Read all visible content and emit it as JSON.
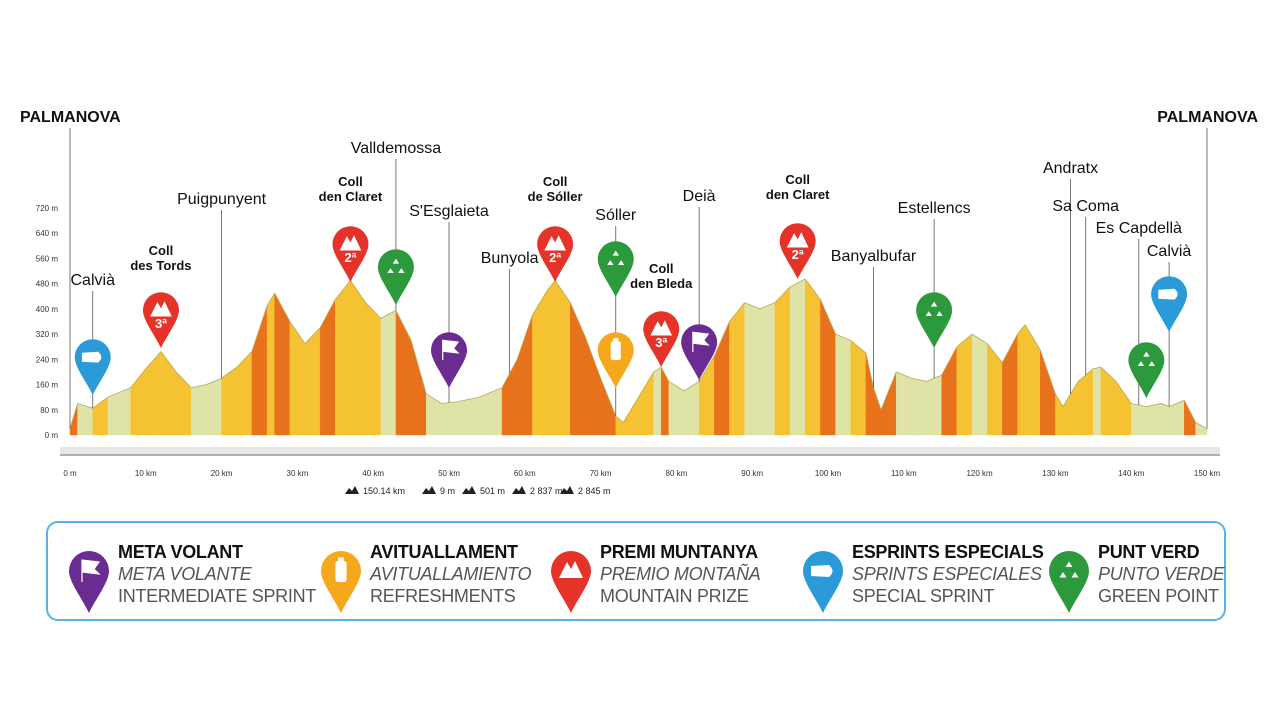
{
  "chart_data": {
    "type": "area",
    "title": "",
    "xlabel": "",
    "ylabel": "",
    "xlim": [
      0,
      150
    ],
    "ylim": [
      0,
      720
    ],
    "x_ticks": [
      0,
      10,
      20,
      30,
      40,
      50,
      60,
      70,
      80,
      90,
      100,
      110,
      120,
      130,
      140,
      150
    ],
    "x_tick_labels": [
      "0 m",
      "10 km",
      "20 km",
      "30 km",
      "40 km",
      "50 km",
      "60 km",
      "70 km",
      "80 km",
      "90 km",
      "100 km",
      "110 km",
      "120 km",
      "130 km",
      "140 km",
      "150 km"
    ],
    "y_ticks": [
      0,
      80,
      160,
      240,
      320,
      400,
      480,
      560,
      640,
      720
    ],
    "y_tick_labels": [
      "0 m",
      "80 m",
      "160 m",
      "240 m",
      "320 m",
      "400 m",
      "480 m",
      "560 m",
      "640 m",
      "720 m"
    ],
    "profile": {
      "x": [
        0,
        1,
        3,
        5,
        8,
        10,
        12,
        14,
        16,
        18,
        20,
        22,
        24,
        26,
        27,
        29,
        31,
        33,
        35,
        37,
        39,
        41,
        43,
        45,
        47,
        49,
        51,
        54,
        57,
        59,
        61,
        63,
        64,
        66,
        68,
        70,
        72,
        73,
        75,
        77,
        78,
        79,
        81,
        83,
        85,
        87,
        89,
        91,
        93,
        95,
        97,
        99,
        101,
        103,
        105,
        106,
        107,
        109,
        111,
        113,
        115,
        117,
        119,
        121,
        123,
        125,
        126,
        128,
        130,
        131,
        133,
        135,
        136,
        138,
        140,
        142,
        144,
        145,
        147,
        148.5,
        150
      ],
      "y": [
        20,
        100,
        85,
        120,
        150,
        210,
        265,
        200,
        150,
        160,
        180,
        215,
        265,
        410,
        450,
        360,
        290,
        340,
        430,
        490,
        420,
        370,
        395,
        300,
        130,
        100,
        105,
        120,
        150,
        240,
        380,
        460,
        490,
        420,
        310,
        180,
        60,
        40,
        120,
        200,
        215,
        170,
        140,
        170,
        250,
        360,
        420,
        400,
        420,
        470,
        495,
        430,
        320,
        300,
        260,
        150,
        80,
        200,
        180,
        170,
        190,
        280,
        320,
        290,
        230,
        320,
        350,
        270,
        130,
        90,
        170,
        210,
        215,
        170,
        100,
        90,
        100,
        90,
        110,
        40,
        20
      ]
    },
    "start_label": "PALMANOVA",
    "end_label": "PALMANOVA",
    "places": [
      {
        "name": "Calvià",
        "km": 3
      },
      {
        "name": "Puigpunyent",
        "km": 20
      },
      {
        "name": "Valldemossa",
        "km": 43
      },
      {
        "name": "S'Esglaieta",
        "km": 50
      },
      {
        "name": "Bunyola",
        "km": 58
      },
      {
        "name": "Sóller",
        "km": 72
      },
      {
        "name": "Deià",
        "km": 83
      },
      {
        "name": "Banyalbufar",
        "km": 106
      },
      {
        "name": "Estellencs",
        "km": 114
      },
      {
        "name": "Andratx",
        "km": 132
      },
      {
        "name": "Sa Coma",
        "km": 134
      },
      {
        "name": "Es Capdellà",
        "km": 141
      },
      {
        "name": "Calvià",
        "km": 145
      }
    ],
    "climbs": [
      {
        "name_line1": "Coll",
        "name_line2": "des Tords",
        "km": 12,
        "category": "3ª"
      },
      {
        "name_line1": "Coll",
        "name_line2": "den Claret",
        "km": 37,
        "category": "2ª"
      },
      {
        "name_line1": "Coll",
        "name_line2": "de Sóller",
        "km": 64,
        "category": "2ª"
      },
      {
        "name_line1": "Coll",
        "name_line2": "den Bleda",
        "km": 78,
        "category": "3ª"
      },
      {
        "name_line1": "Coll",
        "name_line2": "den Claret",
        "km": 96,
        "category": "2ª"
      }
    ],
    "markers": [
      {
        "type": "special-sprint",
        "km": 3
      },
      {
        "type": "green-point",
        "km": 43
      },
      {
        "type": "intermediate-sprint",
        "km": 50
      },
      {
        "type": "green-point",
        "km": 72
      },
      {
        "type": "refreshments",
        "km": 72
      },
      {
        "type": "intermediate-sprint",
        "km": 83
      },
      {
        "type": "green-point",
        "km": 114
      },
      {
        "type": "green-point",
        "km": 142
      },
      {
        "type": "special-sprint",
        "km": 145
      }
    ],
    "stats": [
      "150.14 km",
      "9 m",
      "501 m",
      "2 837 m",
      "2 845 m"
    ]
  },
  "legend": [
    {
      "type": "intermediate-sprint",
      "main": "META VOLANT",
      "es": "META VOLANTE",
      "en": "INTERMEDIATE SPRINT",
      "color": "#6b2c91"
    },
    {
      "type": "refreshments",
      "main": "AVITUALLAMENT",
      "es": "AVITUALLAMIENTO",
      "en": "REFRESHMENTS",
      "color": "#f5a81c"
    },
    {
      "type": "mountain-prize",
      "main": "PREMI MUNTANYA",
      "es": "PREMIO MONTAÑA",
      "en": "MOUNTAIN PRIZE",
      "color": "#e5332a"
    },
    {
      "type": "special-sprint",
      "main": "ESPRINTS ESPECIALS",
      "es": "SPRINTS ESPECIALES",
      "en": "SPECIAL SPRINT",
      "color": "#2a9ad8"
    },
    {
      "type": "green-point",
      "main": "PUNT VERD",
      "es": "PUNTO VERDE",
      "en": "GREEN POINT",
      "color": "#2c9a3c"
    }
  ],
  "colors": {
    "intermediate-sprint": "#6b2c91",
    "refreshments": "#f5a81c",
    "mountain-prize": "#e5332a",
    "special-sprint": "#2a9ad8",
    "green-point": "#2c9a3c",
    "flat": "#dfe3a6",
    "climb": "#f5c332",
    "steep": "#e8721c",
    "legend_border": "#58b3e4"
  }
}
